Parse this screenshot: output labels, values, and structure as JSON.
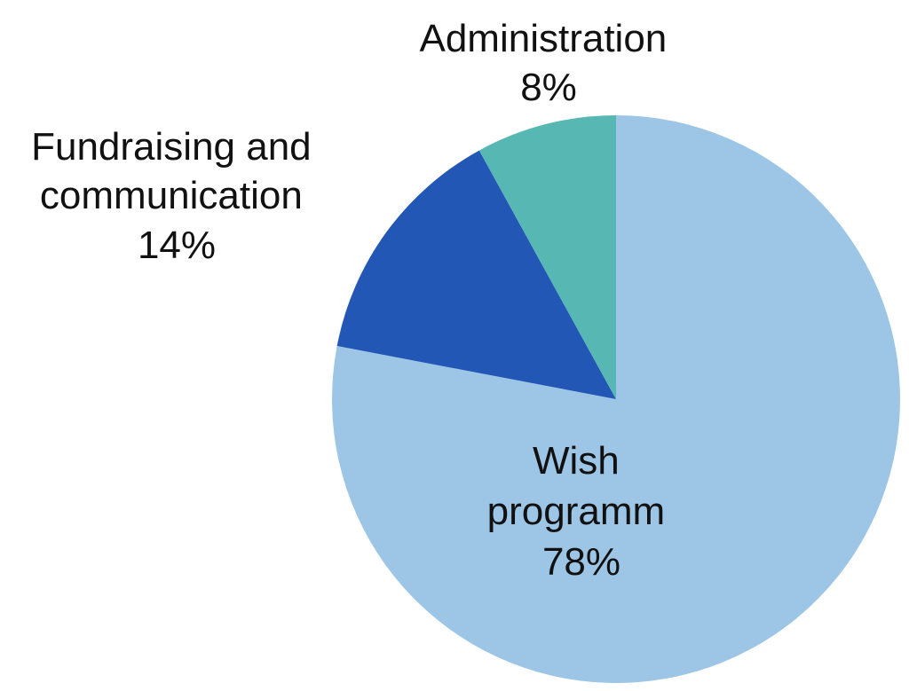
{
  "chart_data": {
    "type": "pie",
    "title": "",
    "start": "top",
    "direction": "clockwise",
    "slices": [
      {
        "label_lines": [
          "Wish",
          "programm"
        ],
        "value_label": "78%",
        "value": 78,
        "color": "#9dc6e6"
      },
      {
        "label_lines": [
          "Fundraising and",
          "communication"
        ],
        "value_label": "14%",
        "value": 14,
        "color": "#2357b5"
      },
      {
        "label_lines": [
          "Administration"
        ],
        "value_label": "8%",
        "value": 8,
        "color": "#56b7b3"
      }
    ]
  }
}
